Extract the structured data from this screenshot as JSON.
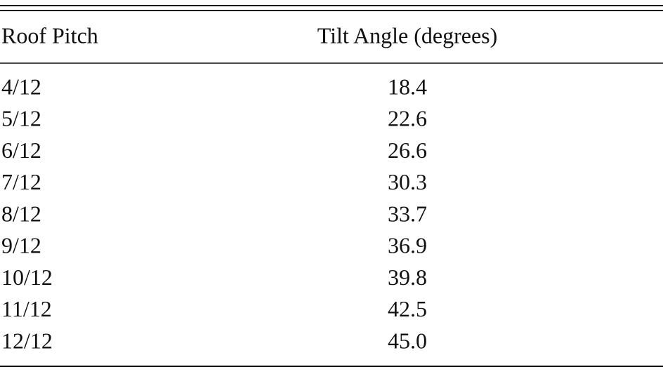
{
  "table": {
    "columns": [
      "Roof Pitch",
      "Tilt Angle (degrees)"
    ],
    "rows": [
      [
        "4/12",
        "18.4"
      ],
      [
        "5/12",
        "22.6"
      ],
      [
        "6/12",
        "26.6"
      ],
      [
        "7/12",
        "30.3"
      ],
      [
        "8/12",
        "33.7"
      ],
      [
        "9/12",
        "36.9"
      ],
      [
        "10/12",
        "39.8"
      ],
      [
        "11/12",
        "42.5"
      ],
      [
        "12/12",
        "45.0"
      ]
    ]
  }
}
